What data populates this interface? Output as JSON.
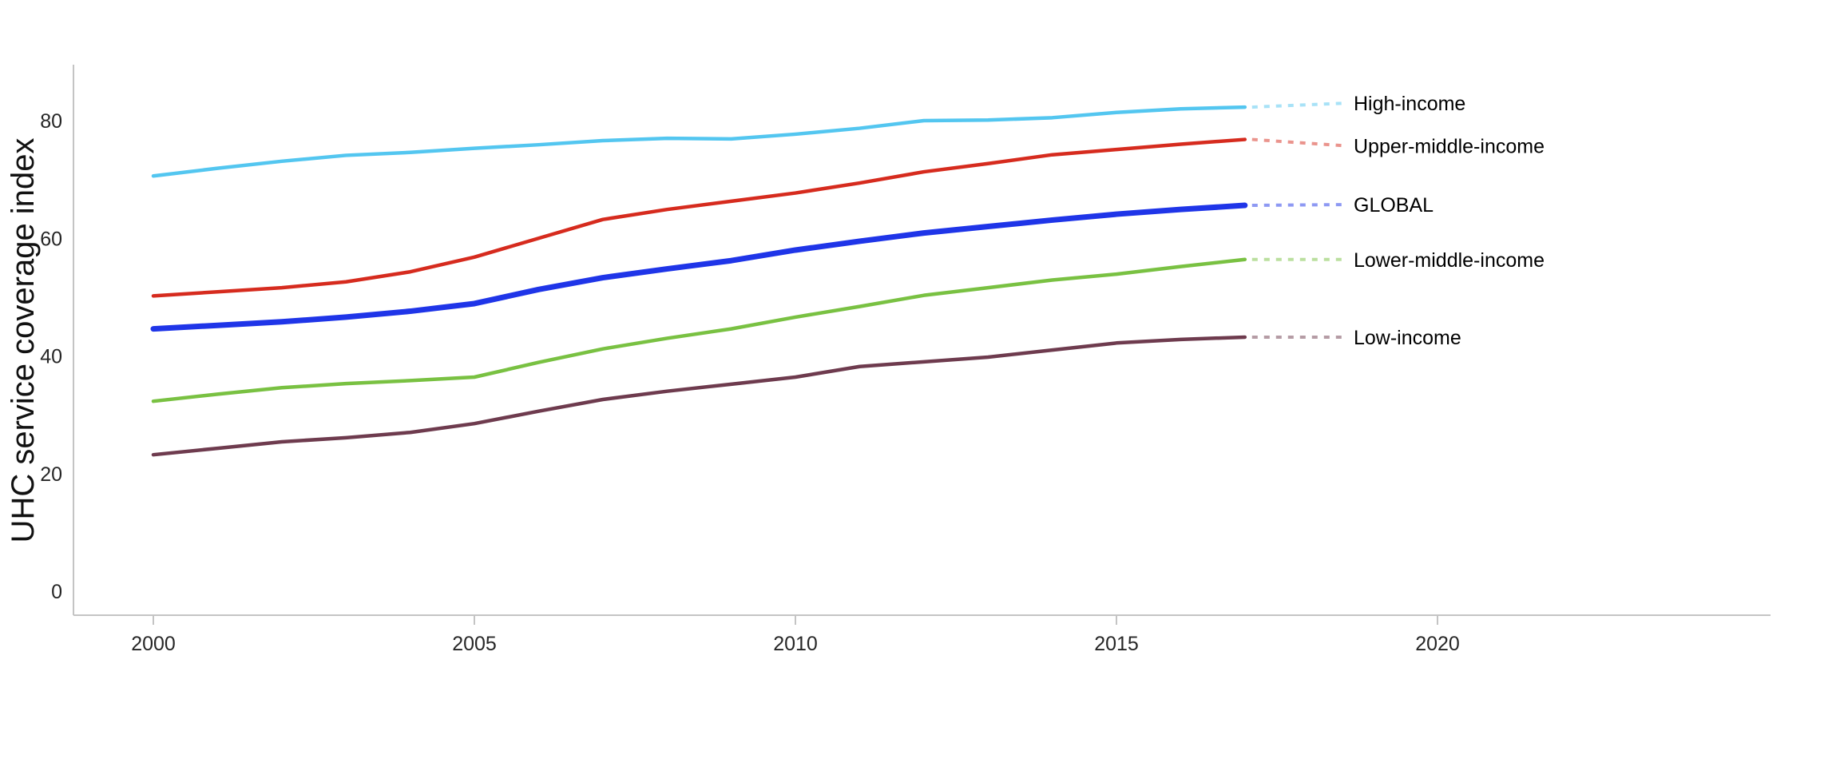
{
  "chart_data": {
    "type": "line",
    "title": "",
    "ylabel": "UHC service coverage index",
    "xlabel": "",
    "grid": false,
    "legend_position": "right-end-labels",
    "axis_color": "#C4C4C4",
    "text_color": "#262626",
    "background_color": "#FFFFFF",
    "xlim": [
      1998.76,
      2025.2
    ],
    "ylim": [
      -4.1,
      89.5
    ],
    "xticks": [
      2000,
      2005,
      2010,
      2015,
      2020
    ],
    "yticks": [
      0,
      20,
      40,
      60,
      80
    ],
    "x": [
      2000,
      2001,
      2002,
      2003,
      2004,
      2005,
      2006,
      2007,
      2008,
      2009,
      2010,
      2011,
      2012,
      2013,
      2014,
      2015,
      2016,
      2017
    ],
    "series": [
      {
        "name": "High-income",
        "color": "#53C6F0",
        "line_width": 4.5,
        "label_dy": -5,
        "values": [
          70.6,
          71.9,
          73.1,
          74.1,
          74.6,
          75.3,
          75.9,
          76.6,
          77.0,
          76.9,
          77.7,
          78.7,
          80.0,
          80.1,
          80.5,
          81.4,
          82.0,
          82.3
        ]
      },
      {
        "name": "Upper-middle-income",
        "color": "#D62B1E",
        "line_width": 4.5,
        "label_dy": 8,
        "values": [
          50.2,
          50.9,
          51.6,
          52.6,
          54.3,
          56.8,
          60.0,
          63.2,
          64.9,
          66.3,
          67.7,
          69.4,
          71.3,
          72.7,
          74.2,
          75.1,
          76.0,
          76.8
        ]
      },
      {
        "name": "GLOBAL",
        "color": "#1F35E8",
        "line_width": 7,
        "label_dy": -1,
        "values": [
          44.6,
          45.2,
          45.8,
          46.6,
          47.6,
          48.9,
          51.3,
          53.3,
          54.8,
          56.2,
          58.0,
          59.5,
          60.9,
          62.0,
          63.1,
          64.1,
          64.9,
          65.6
        ]
      },
      {
        "name": "Lower-middle-income",
        "color": "#79C142",
        "line_width": 4.5,
        "label_dy": 0,
        "values": [
          32.3,
          33.5,
          34.6,
          35.3,
          35.8,
          36.4,
          38.9,
          41.2,
          43.0,
          44.6,
          46.6,
          48.4,
          50.3,
          51.6,
          52.9,
          53.9,
          55.2,
          56.4
        ]
      },
      {
        "name": "Low-income",
        "color": "#6E3B4E",
        "line_width": 4.5,
        "label_dy": 0,
        "values": [
          23.2,
          24.3,
          25.4,
          26.1,
          27.0,
          28.5,
          30.6,
          32.6,
          34.0,
          35.2,
          36.4,
          38.2,
          39.0,
          39.8,
          41.0,
          42.2,
          42.8,
          43.2
        ]
      }
    ]
  }
}
